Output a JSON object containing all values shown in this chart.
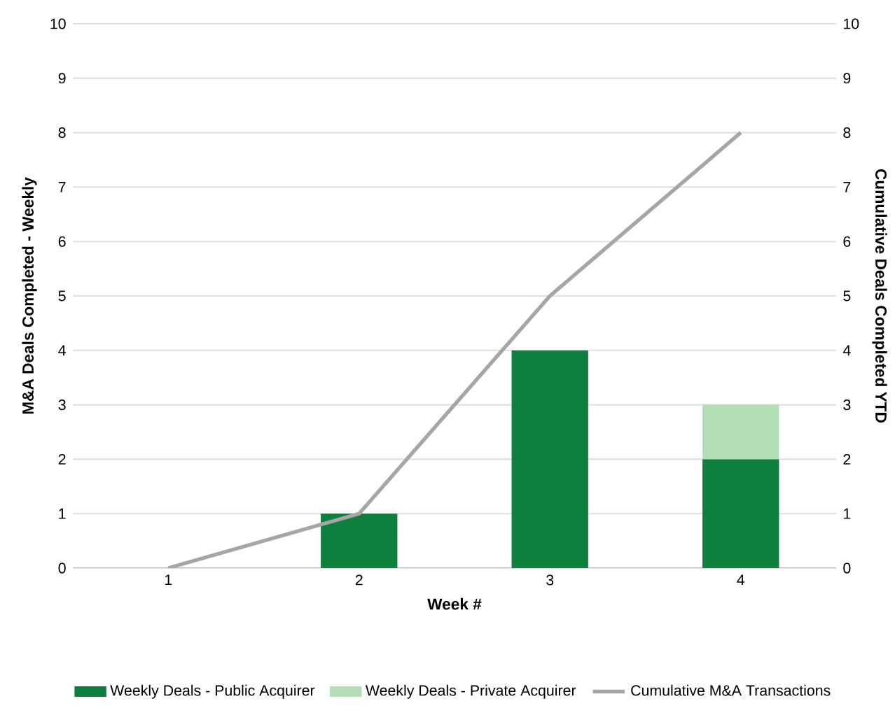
{
  "chart_data": {
    "type": "bar",
    "stacked": true,
    "xlabel": "Week #",
    "ylabel": "M&A Deals Completed - Weekly",
    "y2label": "Cumulative Deals Completed YTD",
    "categories": [
      "1",
      "2",
      "3",
      "4"
    ],
    "series": [
      {
        "name": "Weekly Deals - Public Acquirer",
        "color": "#0e7f3c",
        "values": [
          0,
          1,
          4,
          2
        ]
      },
      {
        "name": "Weekly Deals - Private Acquirer",
        "color": "#b2dfb6",
        "values": [
          0,
          0,
          0,
          1
        ]
      },
      {
        "name": "Cumulative M&A Transactions",
        "type": "line",
        "axis": "y2",
        "color": "#a6a6a6",
        "marker": "none",
        "values": [
          0,
          1,
          5,
          8
        ]
      }
    ],
    "ylim": [
      0,
      10
    ],
    "yticks": [
      0,
      1,
      2,
      3,
      4,
      5,
      6,
      7,
      8,
      9,
      10
    ],
    "y2lim": [
      0,
      10
    ],
    "y2ticks": [
      0,
      1,
      2,
      3,
      4,
      5,
      6,
      7,
      8,
      9,
      10
    ],
    "grid": "y",
    "legend": "bottom"
  }
}
